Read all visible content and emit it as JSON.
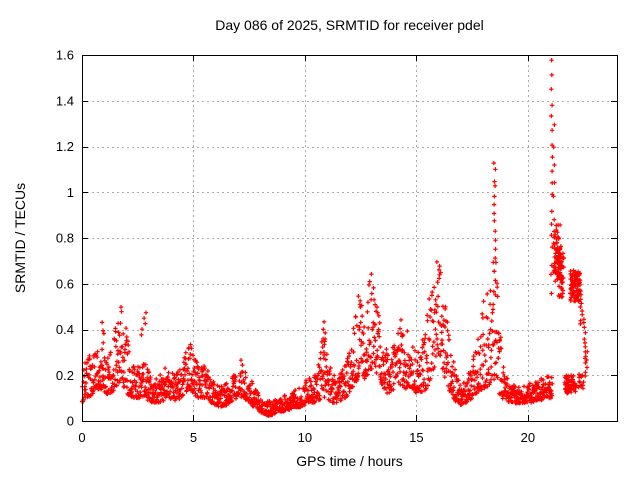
{
  "chart_data": {
    "type": "scatter",
    "title": "Day 086 of 2025, SRMTID for receiver pdel",
    "xlabel": "GPS time / hours",
    "ylabel": "SRMTID / TECUs",
    "xlim": [
      0,
      24
    ],
    "ylim": [
      0,
      1.6
    ],
    "xticks": [
      [
        0,
        "0"
      ],
      [
        5,
        "5"
      ],
      [
        10,
        "10"
      ],
      [
        15,
        "15"
      ],
      [
        20,
        "20"
      ]
    ],
    "yticks": [
      [
        0,
        "0"
      ],
      [
        0.2,
        "0.2"
      ],
      [
        0.4,
        "0.4"
      ],
      [
        0.6,
        "0.6"
      ],
      [
        0.8,
        "0.8"
      ],
      [
        1,
        "1"
      ],
      [
        1.2,
        "1.2"
      ],
      [
        1.4,
        "1.4"
      ],
      [
        1.6,
        "1.6"
      ]
    ],
    "grid": true,
    "legend": false,
    "marker": "plus",
    "color": "#ff0000",
    "grid_color": "#ababab",
    "frame_color": "#000000",
    "seed": 20250086,
    "band_density_per_hour": 92,
    "band_skew": 1.6,
    "envelope_comment": "dense scatter band of SRMTID values: [hour, min, max] read from plot",
    "envelope": [
      [
        0.0,
        0.08,
        0.3
      ],
      [
        0.2,
        0.1,
        0.31
      ],
      [
        0.4,
        0.11,
        0.3
      ],
      [
        0.6,
        0.13,
        0.32
      ],
      [
        0.8,
        0.14,
        0.36
      ],
      [
        1.0,
        0.12,
        0.3
      ],
      [
        1.2,
        0.11,
        0.28
      ],
      [
        1.4,
        0.13,
        0.36
      ],
      [
        1.6,
        0.16,
        0.48
      ],
      [
        1.75,
        0.18,
        0.54
      ],
      [
        1.9,
        0.14,
        0.46
      ],
      [
        2.1,
        0.11,
        0.32
      ],
      [
        2.3,
        0.1,
        0.26
      ],
      [
        2.5,
        0.1,
        0.28
      ],
      [
        2.7,
        0.1,
        0.3
      ],
      [
        2.9,
        0.09,
        0.24
      ],
      [
        3.1,
        0.08,
        0.2
      ],
      [
        3.3,
        0.08,
        0.19
      ],
      [
        3.5,
        0.08,
        0.21
      ],
      [
        3.7,
        0.09,
        0.23
      ],
      [
        3.9,
        0.1,
        0.24
      ],
      [
        4.1,
        0.09,
        0.21
      ],
      [
        4.3,
        0.09,
        0.22
      ],
      [
        4.5,
        0.11,
        0.26
      ],
      [
        4.7,
        0.13,
        0.31
      ],
      [
        4.85,
        0.14,
        0.35
      ],
      [
        5.0,
        0.12,
        0.3
      ],
      [
        5.2,
        0.1,
        0.26
      ],
      [
        5.4,
        0.1,
        0.24
      ],
      [
        5.6,
        0.1,
        0.24
      ],
      [
        5.8,
        0.08,
        0.19
      ],
      [
        6.0,
        0.07,
        0.16
      ],
      [
        6.2,
        0.06,
        0.15
      ],
      [
        6.4,
        0.06,
        0.16
      ],
      [
        6.6,
        0.08,
        0.18
      ],
      [
        6.8,
        0.09,
        0.21
      ],
      [
        7.0,
        0.1,
        0.24
      ],
      [
        7.2,
        0.1,
        0.28
      ],
      [
        7.4,
        0.09,
        0.24
      ],
      [
        7.6,
        0.07,
        0.18
      ],
      [
        7.8,
        0.05,
        0.14
      ],
      [
        8.0,
        0.04,
        0.12
      ],
      [
        8.2,
        0.03,
        0.1
      ],
      [
        8.4,
        0.02,
        0.09
      ],
      [
        8.6,
        0.03,
        0.09
      ],
      [
        8.8,
        0.04,
        0.1
      ],
      [
        9.0,
        0.04,
        0.11
      ],
      [
        9.2,
        0.05,
        0.12
      ],
      [
        9.4,
        0.05,
        0.13
      ],
      [
        9.6,
        0.06,
        0.14
      ],
      [
        9.8,
        0.06,
        0.15
      ],
      [
        10.0,
        0.07,
        0.17
      ],
      [
        10.2,
        0.08,
        0.22
      ],
      [
        10.4,
        0.08,
        0.2
      ],
      [
        10.6,
        0.09,
        0.26
      ],
      [
        10.8,
        0.1,
        0.38
      ],
      [
        11.0,
        0.1,
        0.32
      ],
      [
        11.2,
        0.08,
        0.22
      ],
      [
        11.4,
        0.08,
        0.2
      ],
      [
        11.6,
        0.09,
        0.22
      ],
      [
        11.8,
        0.1,
        0.25
      ],
      [
        12.0,
        0.12,
        0.35
      ],
      [
        12.2,
        0.15,
        0.5
      ],
      [
        12.35,
        0.18,
        0.6
      ],
      [
        12.5,
        0.2,
        0.55
      ],
      [
        12.65,
        0.18,
        0.48
      ],
      [
        12.8,
        0.2,
        0.55
      ],
      [
        13.0,
        0.22,
        0.68
      ],
      [
        13.15,
        0.22,
        0.62
      ],
      [
        13.3,
        0.18,
        0.5
      ],
      [
        13.5,
        0.14,
        0.38
      ],
      [
        13.7,
        0.12,
        0.3
      ],
      [
        13.9,
        0.13,
        0.32
      ],
      [
        14.1,
        0.15,
        0.4
      ],
      [
        14.3,
        0.16,
        0.46
      ],
      [
        14.5,
        0.14,
        0.4
      ],
      [
        14.7,
        0.15,
        0.43
      ],
      [
        14.9,
        0.13,
        0.34
      ],
      [
        15.1,
        0.11,
        0.3
      ],
      [
        15.3,
        0.12,
        0.36
      ],
      [
        15.5,
        0.15,
        0.52
      ],
      [
        15.7,
        0.2,
        0.62
      ],
      [
        15.9,
        0.26,
        0.7
      ],
      [
        16.05,
        0.28,
        0.72
      ],
      [
        16.2,
        0.2,
        0.58
      ],
      [
        16.4,
        0.14,
        0.44
      ],
      [
        16.6,
        0.11,
        0.3
      ],
      [
        16.8,
        0.08,
        0.2
      ],
      [
        17.0,
        0.07,
        0.16
      ],
      [
        17.2,
        0.08,
        0.18
      ],
      [
        17.4,
        0.09,
        0.22
      ],
      [
        17.6,
        0.11,
        0.3
      ],
      [
        17.8,
        0.13,
        0.4
      ],
      [
        18.0,
        0.14,
        0.52
      ],
      [
        18.2,
        0.15,
        0.6
      ],
      [
        18.4,
        0.16,
        0.7
      ],
      [
        18.55,
        0.15,
        0.78
      ],
      [
        18.7,
        0.12,
        0.5
      ],
      [
        18.85,
        0.1,
        0.28
      ],
      [
        19.0,
        0.09,
        0.2
      ],
      [
        19.2,
        0.08,
        0.17
      ],
      [
        19.4,
        0.08,
        0.16
      ],
      [
        19.6,
        0.07,
        0.16
      ],
      [
        19.8,
        0.08,
        0.17
      ],
      [
        20.0,
        0.08,
        0.18
      ],
      [
        20.2,
        0.08,
        0.17
      ],
      [
        20.4,
        0.09,
        0.18
      ],
      [
        20.6,
        0.09,
        0.19
      ],
      [
        20.8,
        0.1,
        0.2
      ],
      [
        21.1,
        0.1,
        0.2
      ]
    ],
    "clusters_comment": "dense rectangular clusters: [h0, h1, v0, v1, n_points]",
    "clusters": [
      [
        21.15,
        21.48,
        0.6,
        0.86,
        70
      ],
      [
        21.35,
        21.62,
        0.54,
        0.74,
        45
      ],
      [
        21.9,
        22.35,
        0.52,
        0.66,
        90
      ],
      [
        21.65,
        22.15,
        0.12,
        0.2,
        55
      ],
      [
        22.15,
        22.5,
        0.14,
        0.21,
        16
      ]
    ],
    "columns_comment": "sparse vertical spike columns: [hour, width, v0, v1, n_points]",
    "columns": [
      [
        0.95,
        0.1,
        0.34,
        0.42,
        4
      ],
      [
        2.75,
        0.25,
        0.36,
        0.47,
        5
      ],
      [
        10.85,
        0.15,
        0.3,
        0.42,
        6
      ],
      [
        18.5,
        0.1,
        0.6,
        1.12,
        15
      ],
      [
        21.07,
        0.07,
        0.55,
        1.55,
        18
      ],
      [
        21.17,
        0.05,
        0.8,
        1.26,
        7
      ],
      [
        22.4,
        0.1,
        0.42,
        0.56,
        9
      ],
      [
        22.55,
        0.08,
        0.27,
        0.44,
        9
      ],
      [
        22.62,
        0.1,
        0.19,
        0.3,
        7
      ]
    ]
  }
}
